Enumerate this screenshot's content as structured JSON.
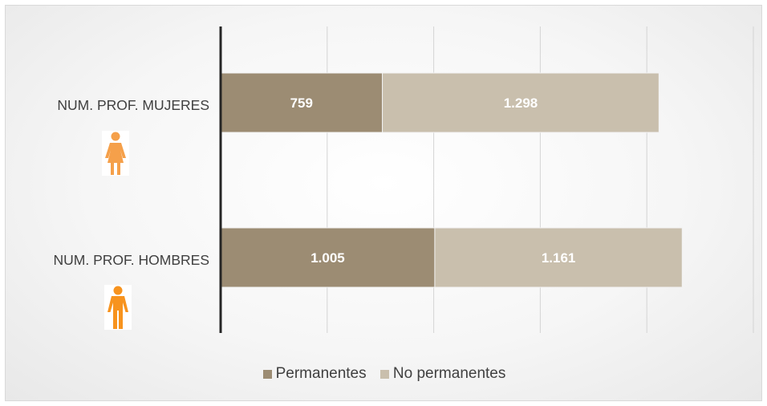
{
  "chart_data": {
    "type": "bar",
    "orientation": "horizontal",
    "stacked": true,
    "categories": [
      "NUM. PROF. MUJERES",
      "NUM. PROF. HOMBRES"
    ],
    "series": [
      {
        "name": "Permanentes",
        "values": [
          759,
          1005
        ],
        "labels": [
          "759",
          "1.005"
        ],
        "color": "#9c8c73"
      },
      {
        "name": "No permanentes",
        "values": [
          1298,
          1161
        ],
        "labels": [
          "1.298",
          "1.161"
        ],
        "color": "#c9bfad"
      }
    ],
    "xlim": [
      0,
      2500
    ],
    "grid": true,
    "legend": "bottom",
    "title": "",
    "xlabel": "",
    "ylabel": ""
  },
  "icons": {
    "female": {
      "name": "female-person-icon",
      "color": "#f5a04a"
    },
    "male": {
      "name": "male-person-icon",
      "color": "#f7931e"
    }
  }
}
